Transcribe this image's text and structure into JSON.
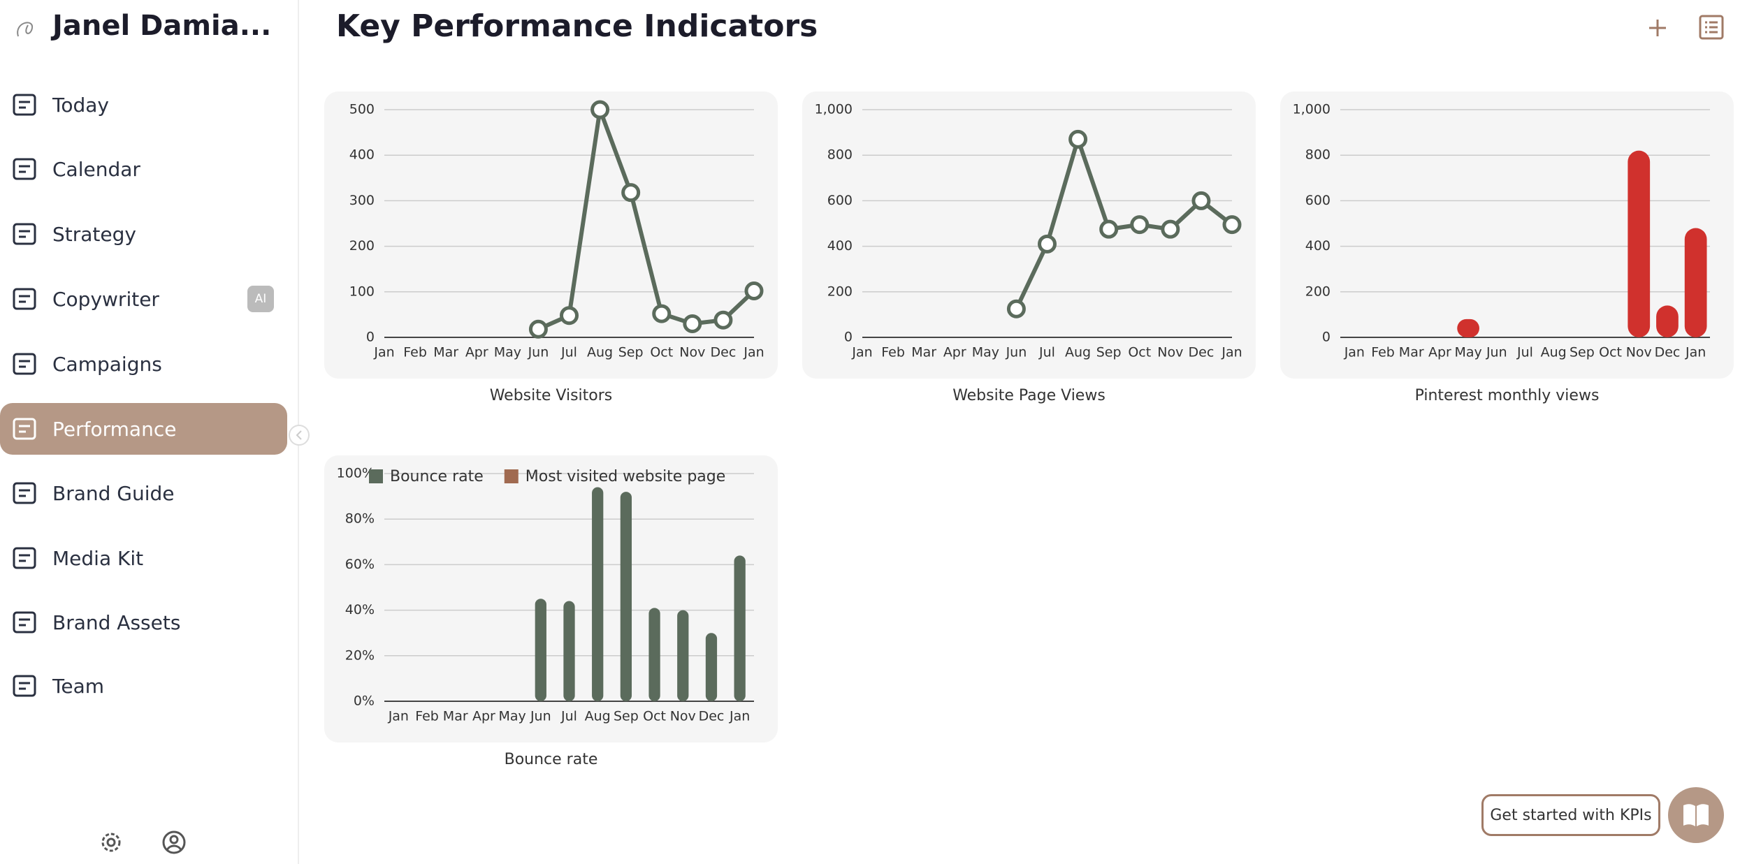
{
  "sidebar": {
    "brand": "Janel Damia...",
    "items": [
      "Today",
      "Calendar",
      "Strategy",
      "Copywriter",
      "Campaigns",
      "Performance",
      "Brand Guide",
      "Media Kit",
      "Brand Assets",
      "Team"
    ],
    "active": "Performance",
    "badge": "AI"
  },
  "header": {
    "title": "Key Performance Indicators"
  },
  "help_button": "Get started with KPIs",
  "chart_data": [
    {
      "type": "line",
      "title": "Website Visitors",
      "categories": [
        "Jan",
        "Feb",
        "Mar",
        "Apr",
        "May",
        "Jun",
        "Jul",
        "Aug",
        "Sep",
        "Oct",
        "Nov",
        "Dec",
        "Jan"
      ],
      "values": [
        null,
        null,
        null,
        null,
        null,
        18,
        48,
        500,
        318,
        52,
        30,
        38,
        102
      ],
      "color": "#5b6b5c",
      "ylim": [
        0,
        500
      ],
      "yticks": [
        0,
        100,
        200,
        300,
        400,
        500
      ],
      "grid": true
    },
    {
      "type": "line",
      "title": "Website Page Views",
      "categories": [
        "Jan",
        "Feb",
        "Mar",
        "Apr",
        "May",
        "Jun",
        "Jul",
        "Aug",
        "Sep",
        "Oct",
        "Nov",
        "Dec",
        "Jan"
      ],
      "values": [
        null,
        null,
        null,
        null,
        null,
        125,
        410,
        870,
        475,
        495,
        475,
        600,
        495
      ],
      "color": "#5b6b5c",
      "ylim": [
        0,
        1000
      ],
      "yticks": [
        0,
        200,
        400,
        600,
        800,
        {
          "value": 1000,
          "label": "1,000"
        }
      ],
      "grid": true
    },
    {
      "type": "bar",
      "title": "Pinterest monthly views",
      "categories": [
        "Jan",
        "Feb",
        "Mar",
        "Apr",
        "May",
        "Jun",
        "Jul",
        "Aug",
        "Sep",
        "Oct",
        "Nov",
        "Dec",
        "Jan"
      ],
      "values": [
        null,
        null,
        null,
        null,
        80,
        null,
        null,
        null,
        null,
        null,
        820,
        140,
        480
      ],
      "color": "#d0312d",
      "ylim": [
        0,
        1000
      ],
      "yticks": [
        0,
        200,
        400,
        600,
        800,
        {
          "value": 1000,
          "label": "1,000"
        }
      ],
      "grid": true
    },
    {
      "type": "bar",
      "title": "Bounce rate",
      "categories": [
        "Jan",
        "Feb",
        "Mar",
        "Apr",
        "May",
        "Jun",
        "Jul",
        "Aug",
        "Sep",
        "Oct",
        "Nov",
        "Dec",
        "Jan"
      ],
      "series": [
        {
          "name": "Bounce rate",
          "color": "#5b6b5c",
          "values": [
            null,
            null,
            null,
            null,
            null,
            45,
            44,
            94,
            92,
            41,
            40,
            30,
            64
          ]
        },
        {
          "name": "Most visited website page",
          "color": "#a06a50",
          "values": [
            null,
            null,
            null,
            null,
            null,
            null,
            null,
            null,
            null,
            null,
            null,
            null,
            null
          ]
        }
      ],
      "ylim": [
        0,
        100
      ],
      "yticks": [
        {
          "value": 0,
          "label": "0%"
        },
        {
          "value": 20,
          "label": "20%"
        },
        {
          "value": 40,
          "label": "40%"
        },
        {
          "value": 60,
          "label": "60%"
        },
        {
          "value": 80,
          "label": "80%"
        },
        {
          "value": 100,
          "label": "100%"
        }
      ],
      "grid": true,
      "legend": "top"
    }
  ]
}
